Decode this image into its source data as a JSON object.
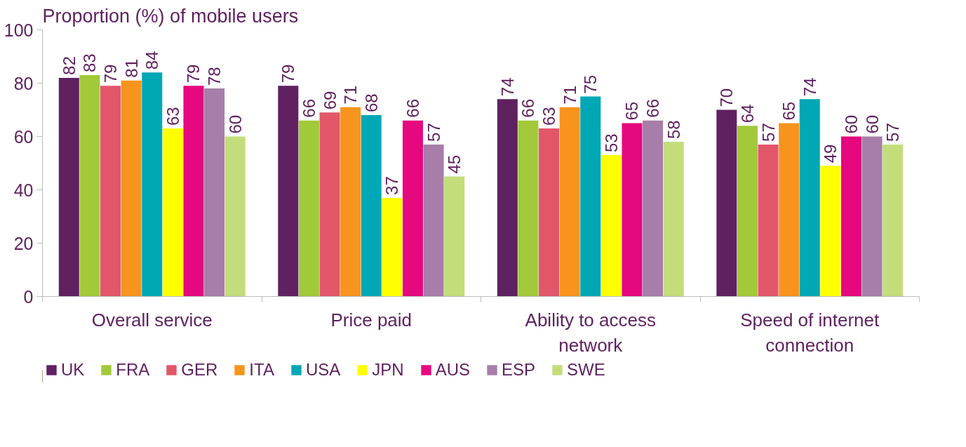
{
  "chart_data": {
    "type": "bar",
    "ylabel": "Proportion (%) of mobile users",
    "categories": [
      "Overall service",
      "Price paid",
      "Ability to access\nnetwork",
      "Speed of internet\nconnection"
    ],
    "series": [
      {
        "name": "UK",
        "color": "#5f2160",
        "values": [
          82,
          79,
          74,
          70
        ]
      },
      {
        "name": "FRA",
        "color": "#a2c93a",
        "values": [
          83,
          66,
          66,
          64
        ]
      },
      {
        "name": "GER",
        "color": "#e2566a",
        "values": [
          79,
          69,
          63,
          57
        ]
      },
      {
        "name": "ITA",
        "color": "#f7941d",
        "values": [
          81,
          71,
          71,
          65
        ]
      },
      {
        "name": "USA",
        "color": "#00a7b5",
        "values": [
          84,
          68,
          75,
          74
        ]
      },
      {
        "name": "JPN",
        "color": "#ffff00",
        "values": [
          63,
          37,
          53,
          49
        ]
      },
      {
        "name": "AUS",
        "color": "#e5087e",
        "values": [
          79,
          66,
          65,
          60
        ]
      },
      {
        "name": "ESP",
        "color": "#a67ea9",
        "values": [
          78,
          57,
          66,
          60
        ]
      },
      {
        "name": "SWE",
        "color": "#c3dd7b",
        "values": [
          60,
          45,
          58,
          57
        ]
      }
    ],
    "ylim": [
      0,
      100
    ],
    "yticks": [
      0,
      20,
      40,
      60,
      80,
      100
    ],
    "grid": false,
    "legend": "bottom",
    "data_labels": true
  }
}
